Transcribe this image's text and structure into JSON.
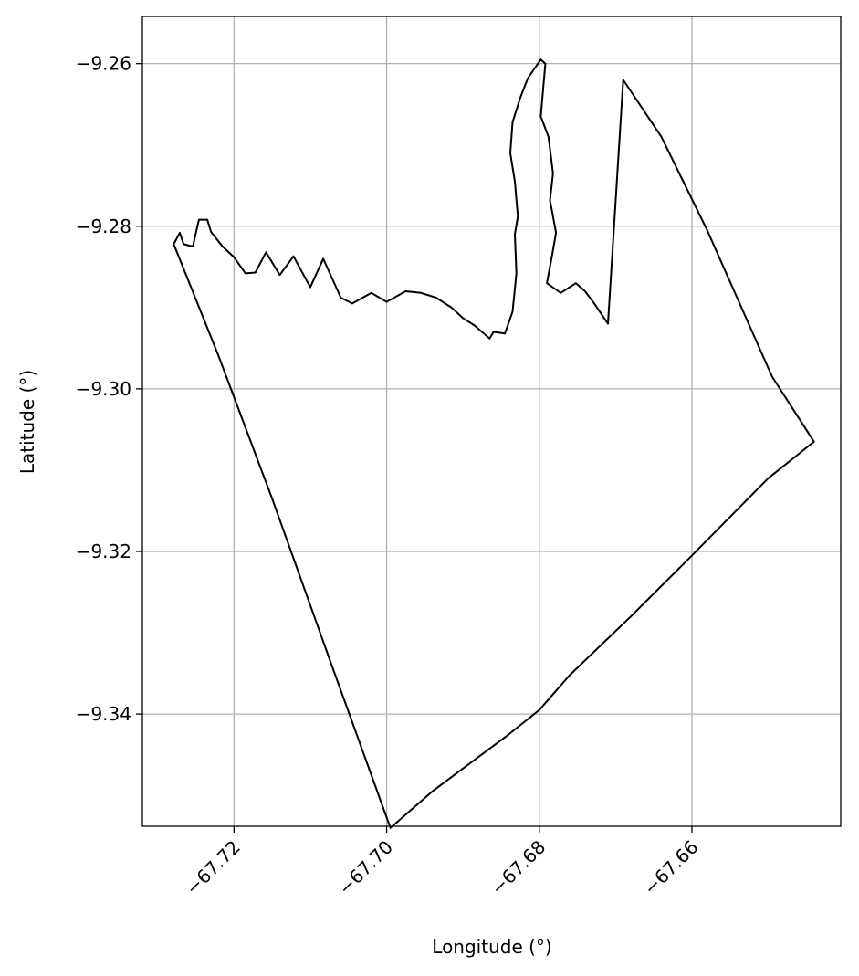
{
  "chart_data": {
    "type": "line",
    "title": "",
    "xlabel": "Longitude (°)",
    "ylabel": "Latitude (°)",
    "xlim": [
      -67.732,
      -67.6405
    ],
    "ylim": [
      -9.3538,
      -9.2542
    ],
    "grid": true,
    "xticks": [
      -67.72,
      -67.7,
      -67.68,
      -67.66
    ],
    "yticks": [
      -9.26,
      -9.28,
      -9.3,
      -9.32,
      -9.34
    ],
    "xtick_labels": [
      "−67.72",
      "−67.70",
      "−67.68",
      "−67.66"
    ],
    "ytick_labels": [
      "−9.26",
      "−9.28",
      "−9.30",
      "−9.32",
      "−9.34"
    ],
    "line_color": "#000000",
    "grid_color": "#b0b0b0",
    "series": [
      {
        "x": [
          -67.7279,
          -67.7271,
          -67.7266,
          -67.7254,
          -67.7246,
          -67.7235,
          -67.723,
          -67.7215,
          -67.72,
          -67.7185,
          -67.7172,
          -67.7158,
          -67.714,
          -67.7122,
          -67.71,
          -67.7083,
          -67.706,
          -67.7045,
          -67.702,
          -67.7,
          -67.6975,
          -67.6955,
          -67.6935,
          -67.6915,
          -67.69,
          -67.6885,
          -67.6865,
          -67.686,
          -67.6845,
          -67.6835,
          -67.683,
          -67.6832,
          -67.6828,
          -67.6832,
          -67.6838,
          -67.6835,
          -67.6825,
          -67.6815,
          -67.6798,
          -67.6792,
          -67.6798,
          -67.6788,
          -67.6782,
          -67.6786,
          -67.6778,
          -67.6784,
          -67.679,
          -67.6772,
          -67.6752,
          -67.674,
          -67.6728,
          -67.671,
          -67.669,
          -67.664,
          -67.658,
          -67.6495,
          -67.644,
          -67.65,
          -67.66,
          -67.668,
          -67.676,
          -67.68,
          -67.684,
          -67.694,
          -67.6995,
          -67.707,
          -67.715,
          -67.722,
          -67.7279
        ],
        "y": [
          -9.2822,
          -9.2808,
          -9.2822,
          -9.2825,
          -9.2792,
          -9.2792,
          -9.2807,
          -9.2825,
          -9.2838,
          -9.2858,
          -9.2857,
          -9.2832,
          -9.286,
          -9.2837,
          -9.2875,
          -9.284,
          -9.2888,
          -9.2895,
          -9.2882,
          -9.2893,
          -9.288,
          -9.2882,
          -9.2888,
          -9.29,
          -9.2913,
          -9.2922,
          -9.2938,
          -9.293,
          -9.2932,
          -9.2905,
          -9.2858,
          -9.281,
          -9.2788,
          -9.2745,
          -9.271,
          -9.2672,
          -9.2642,
          -9.2618,
          -9.2595,
          -9.26,
          -9.2665,
          -9.269,
          -9.2735,
          -9.2768,
          -9.2808,
          -9.284,
          -9.287,
          -9.2882,
          -9.287,
          -9.288,
          -9.2895,
          -9.292,
          -9.262,
          -9.269,
          -9.2805,
          -9.2985,
          -9.3065,
          -9.311,
          -9.3205,
          -9.328,
          -9.3352,
          -9.3395,
          -9.3425,
          -9.3495,
          -9.354,
          -9.3345,
          -9.3135,
          -9.296,
          -9.2822
        ]
      }
    ]
  }
}
